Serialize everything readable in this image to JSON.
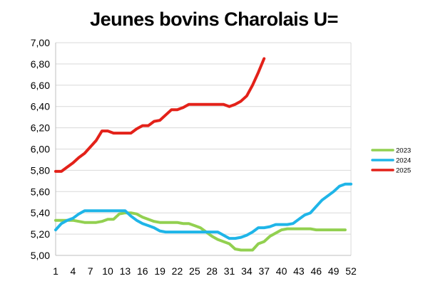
{
  "chart_data": {
    "type": "line",
    "title": "Jeunes bovins Charolais U=",
    "xlabel": "",
    "ylabel": "",
    "x_ticks": [
      "1",
      "4",
      "7",
      "10",
      "13",
      "16",
      "19",
      "22",
      "25",
      "28",
      "31",
      "34",
      "37",
      "40",
      "43",
      "46",
      "49",
      "52"
    ],
    "y_ticks": [
      "5,00",
      "5,20",
      "5,40",
      "5,60",
      "5,80",
      "6,00",
      "6,20",
      "6,40",
      "6,60",
      "6,80",
      "7,00"
    ],
    "xlim": [
      1,
      52
    ],
    "ylim": [
      5.0,
      7.0
    ],
    "grid": "horizontal",
    "legend_position": "right",
    "series": [
      {
        "name": "2023",
        "color": "#92d050",
        "x": [
          1,
          2,
          3,
          4,
          5,
          6,
          7,
          8,
          9,
          10,
          11,
          12,
          13,
          14,
          15,
          16,
          17,
          18,
          19,
          20,
          21,
          22,
          23,
          24,
          25,
          26,
          27,
          28,
          29,
          30,
          31,
          32,
          33,
          34,
          35,
          36,
          37,
          38,
          39,
          40,
          41,
          42,
          43,
          44,
          45,
          46,
          47,
          48,
          49,
          50,
          51,
          52
        ],
        "values": [
          5.33,
          5.33,
          5.33,
          5.33,
          5.32,
          5.31,
          5.31,
          5.31,
          5.32,
          5.34,
          5.34,
          5.39,
          5.4,
          5.4,
          5.39,
          5.36,
          5.34,
          5.32,
          5.31,
          5.31,
          5.31,
          5.31,
          5.3,
          5.3,
          5.28,
          5.26,
          5.22,
          5.18,
          5.15,
          5.13,
          5.11,
          5.06,
          5.05,
          5.05,
          5.05,
          5.11,
          5.13,
          5.18,
          5.21,
          5.24,
          5.25,
          5.25,
          5.25,
          5.25,
          5.25,
          5.24,
          5.24,
          5.24,
          5.24,
          5.24,
          5.24,
          null
        ]
      },
      {
        "name": "2024",
        "color": "#1fb5e8",
        "x": [
          1,
          2,
          3,
          4,
          5,
          6,
          7,
          8,
          9,
          10,
          11,
          12,
          13,
          14,
          15,
          16,
          17,
          18,
          19,
          20,
          21,
          22,
          23,
          24,
          25,
          26,
          27,
          28,
          29,
          30,
          31,
          32,
          33,
          34,
          35,
          36,
          37,
          38,
          39,
          40,
          41,
          42,
          43,
          44,
          45,
          46,
          47,
          48,
          49,
          50,
          51,
          52
        ],
        "values": [
          5.24,
          5.3,
          5.33,
          5.35,
          5.39,
          5.42,
          5.42,
          5.42,
          5.42,
          5.42,
          5.42,
          5.42,
          5.42,
          5.37,
          5.33,
          5.3,
          5.28,
          5.26,
          5.23,
          5.22,
          5.22,
          5.22,
          5.22,
          5.22,
          5.22,
          5.22,
          5.22,
          5.22,
          5.22,
          5.19,
          5.16,
          5.16,
          5.17,
          5.19,
          5.22,
          5.26,
          5.26,
          5.27,
          5.29,
          5.29,
          5.29,
          5.3,
          5.34,
          5.38,
          5.4,
          5.46,
          5.52,
          5.56,
          5.6,
          5.65,
          5.67,
          5.67
        ]
      },
      {
        "name": "2025",
        "color": "#e32119",
        "x": [
          1,
          2,
          3,
          4,
          5,
          6,
          7,
          8,
          9,
          10,
          11,
          12,
          13,
          14,
          15,
          16,
          17,
          18,
          19,
          20,
          21,
          22,
          23,
          24,
          25,
          26,
          27,
          28,
          29,
          30,
          31,
          32,
          33,
          34,
          35,
          36,
          37
        ],
        "values": [
          5.79,
          5.79,
          5.83,
          5.87,
          5.92,
          5.96,
          6.02,
          6.08,
          6.17,
          6.17,
          6.15,
          6.15,
          6.15,
          6.15,
          6.19,
          6.22,
          6.22,
          6.26,
          6.27,
          6.32,
          6.37,
          6.37,
          6.39,
          6.42,
          6.42,
          6.42,
          6.42,
          6.42,
          6.42,
          6.42,
          6.4,
          6.42,
          6.45,
          6.5,
          6.6,
          6.72,
          6.85
        ]
      }
    ]
  }
}
